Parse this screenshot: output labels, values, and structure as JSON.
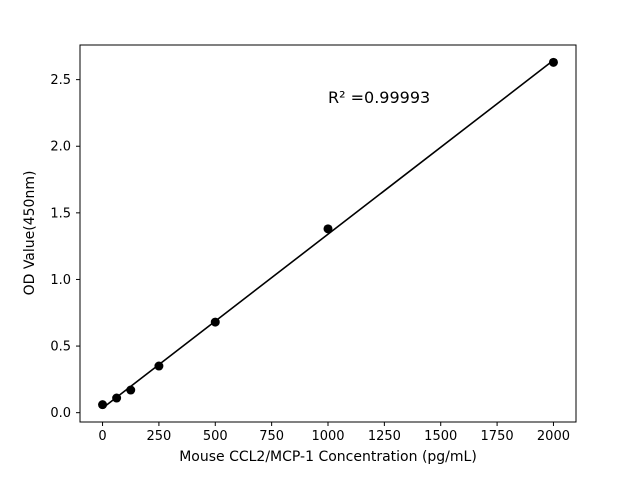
{
  "chart_data": {
    "type": "scatter",
    "title": "",
    "xlabel": "Mouse CCL2/MCP-1 Concentration (pg/mL)",
    "ylabel": "OD Value(450nm)",
    "annotation": "R² =0.99993",
    "x": [
      0,
      62.5,
      125,
      250,
      500,
      1000,
      2000
    ],
    "y": [
      0.06,
      0.11,
      0.17,
      0.35,
      0.68,
      1.38,
      2.63
    ],
    "xlim": [
      -100,
      2100
    ],
    "ylim": [
      -0.07,
      2.76
    ],
    "xticks": [
      0,
      250,
      500,
      750,
      1000,
      1250,
      1500,
      1750,
      2000
    ],
    "xtick_labels": [
      "0",
      "250",
      "500",
      "750",
      "1000",
      "1250",
      "1500",
      "1750",
      "2000"
    ],
    "yticks": [
      0.0,
      0.5,
      1.0,
      1.5,
      2.0,
      2.5
    ],
    "ytick_labels": [
      "0.0",
      "0.5",
      "1.0",
      "1.5",
      "2.0",
      "2.5"
    ],
    "marker_color": "#000000",
    "line_color": "#000000",
    "background_color": "#ffffff",
    "grid": false,
    "legend": "none",
    "fit_line": true
  }
}
